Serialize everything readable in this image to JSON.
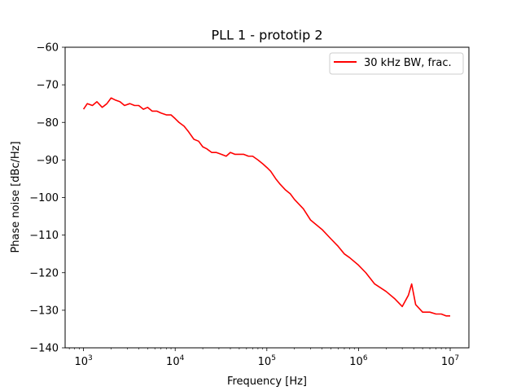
{
  "chart_data": {
    "type": "line",
    "title": "PLL 1 - prototip 2",
    "xlabel": "Frequency [Hz]",
    "ylabel": "Phase noise [dBc/Hz]",
    "x_scale": "log",
    "xlim": [
      630,
      16000000
    ],
    "ylim": [
      -140,
      -60
    ],
    "x_ticks": [
      1000,
      10000,
      100000,
      1000000,
      10000000
    ],
    "x_tick_labels": [
      {
        "base": "10",
        "exp": "3"
      },
      {
        "base": "10",
        "exp": "4"
      },
      {
        "base": "10",
        "exp": "5"
      },
      {
        "base": "10",
        "exp": "6"
      },
      {
        "base": "10",
        "exp": "7"
      }
    ],
    "y_ticks": [
      -60,
      -70,
      -80,
      -90,
      -100,
      -110,
      -120,
      -130,
      -140
    ],
    "y_tick_labels": [
      "−60",
      "−70",
      "−80",
      "−90",
      "−100",
      "−110",
      "−120",
      "−130",
      "−140"
    ],
    "grid": false,
    "legend_position": "top-right",
    "series": [
      {
        "name": "30 kHz BW, frac.",
        "color": "#ff0000",
        "x": [
          1000,
          1100,
          1250,
          1400,
          1600,
          1800,
          2000,
          2200,
          2500,
          2800,
          3200,
          3600,
          4000,
          4500,
          5000,
          5600,
          6300,
          7000,
          8000,
          9000,
          10000,
          11000,
          12500,
          14000,
          16000,
          18000,
          20000,
          22000,
          25000,
          28000,
          32000,
          36000,
          40000,
          45000,
          50000,
          56000,
          63000,
          70000,
          80000,
          90000,
          100000,
          110000,
          125000,
          140000,
          160000,
          180000,
          200000,
          250000,
          300000,
          400000,
          500000,
          600000,
          700000,
          800000,
          1000000,
          1200000,
          1500000,
          2000000,
          2500000,
          3000000,
          3500000,
          3800000,
          4200000,
          5000000,
          6000000,
          7000000,
          8000000,
          9000000,
          10000000
        ],
        "y": [
          -76.5,
          -75,
          -75.5,
          -74.5,
          -76,
          -75,
          -73.5,
          -74,
          -74.5,
          -75.5,
          -75,
          -75.5,
          -75.5,
          -76.5,
          -76,
          -77,
          -77,
          -77.5,
          -78,
          -78,
          -79,
          -80,
          -81,
          -82.5,
          -84.5,
          -85,
          -86.5,
          -87,
          -88,
          -88,
          -88.5,
          -89,
          -88,
          -88.5,
          -88.5,
          -88.5,
          -89,
          -89,
          -90,
          -91,
          -92,
          -93,
          -95,
          -96.5,
          -98,
          -99,
          -100.5,
          -103,
          -106,
          -108.5,
          -111,
          -113,
          -115,
          -116,
          -118,
          -120,
          -123,
          -125,
          -127,
          -129,
          -126,
          -123,
          -128.5,
          -130.5,
          -130.5,
          -131,
          -131,
          -131.5,
          -131.5
        ]
      }
    ]
  }
}
